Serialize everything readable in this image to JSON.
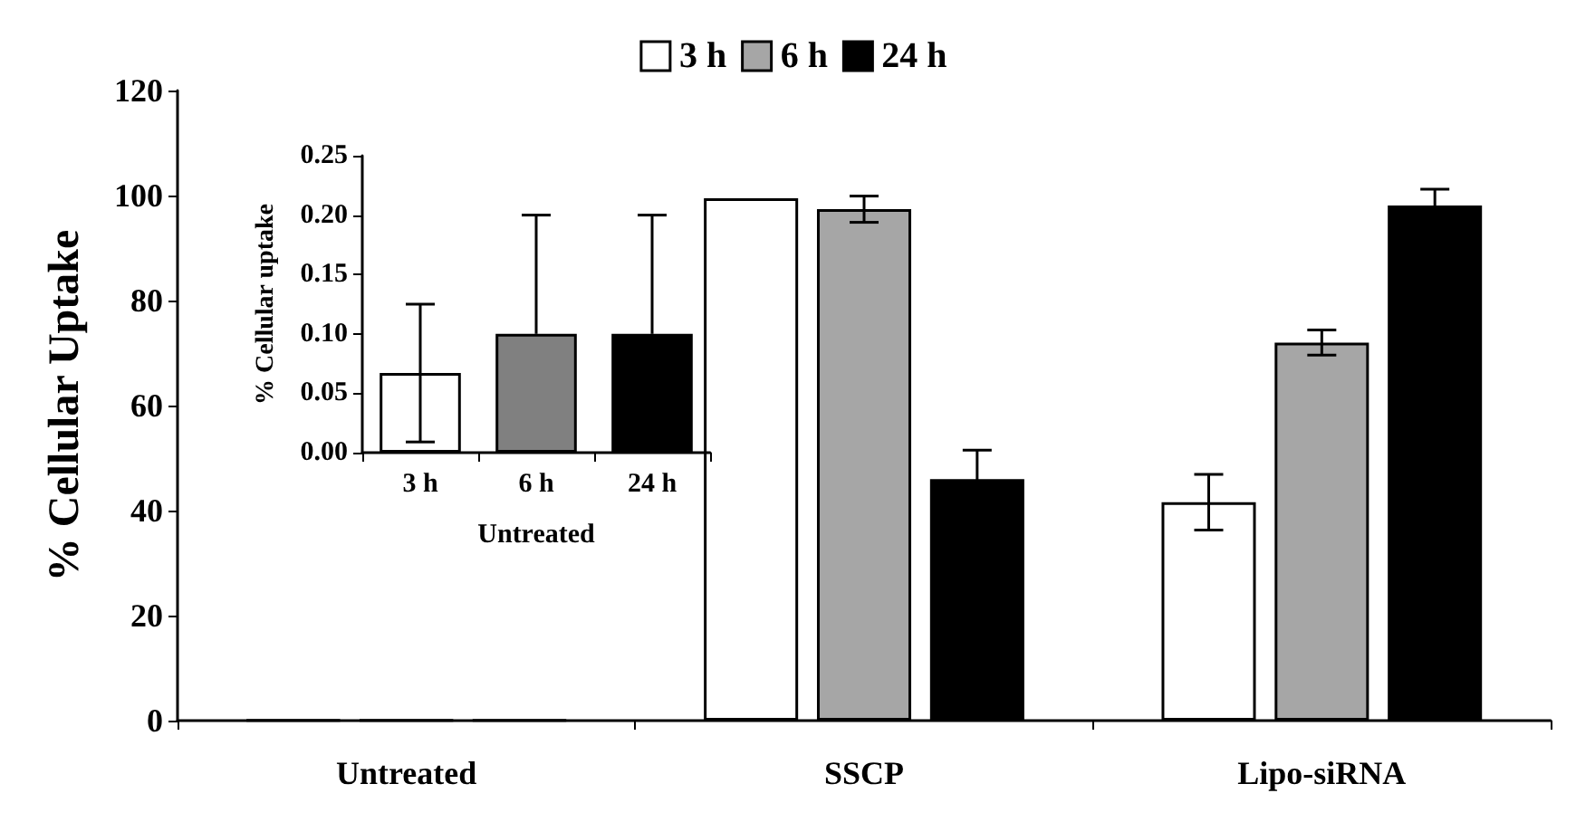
{
  "chart_data": [
    {
      "type": "bar",
      "ylabel": "% Cellular Uptake",
      "categories": [
        "Untreated",
        "SSCP",
        "Lipo-siRNA"
      ],
      "series": [
        {
          "name": "3 h",
          "color": "#ffffff",
          "values": [
            0.1,
            99.5,
            41.6
          ],
          "errors": [
            null,
            null,
            5.3
          ]
        },
        {
          "name": "6 h",
          "color": "#a6a6a6",
          "values": [
            0.1,
            97.4,
            72.0
          ],
          "errors": [
            null,
            2.5,
            2.4
          ]
        },
        {
          "name": "24 h",
          "color": "#000000",
          "values": [
            0.1,
            46.0,
            98.1
          ],
          "errors": [
            null,
            5.5,
            3.1
          ]
        }
      ],
      "ylim": [
        0,
        120
      ],
      "yticks": [
        0,
        20,
        40,
        60,
        80,
        100,
        120
      ],
      "grid": false,
      "legend": "top"
    },
    {
      "type": "bar",
      "xlabel": "Untreated",
      "ylabel": "% Cellular uptake",
      "categories": [
        "3 h",
        "6 h",
        "24 h"
      ],
      "values": [
        0.067,
        0.1,
        0.1
      ],
      "colors": [
        "#ffffff",
        "#808080",
        "#000000"
      ],
      "errors": [
        0.058,
        [
          0.1,
          0.2
        ],
        [
          0.1,
          0.2
        ]
      ],
      "ylim": [
        0,
        0.25
      ],
      "yticks": [
        {
          "value": 0,
          "label": "0.00"
        },
        {
          "value": 0.05,
          "label": "0.05"
        },
        {
          "value": 0.1,
          "label": "0.10"
        },
        {
          "value": 0.15,
          "label": "0.15"
        },
        {
          "value": 0.2,
          "label": "0.20"
        },
        {
          "value": 0.25,
          "label": "0.25"
        }
      ],
      "grid": false
    }
  ]
}
